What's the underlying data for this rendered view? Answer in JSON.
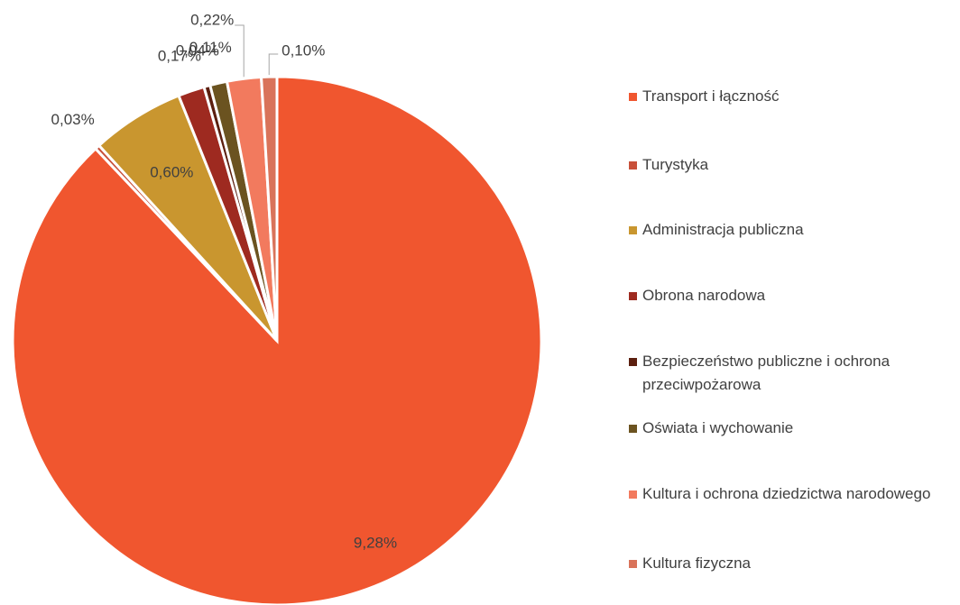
{
  "chart_data": {
    "type": "pie",
    "categories": [
      "Transport i łączność",
      "Turystyka",
      "Administracja publiczna",
      "Obrona narodowa",
      "Bezpieczeństwo publiczne i ochrona przeciwpożarowa",
      "Oświata i wychowanie",
      "Kultura i ochrona dziedzictwa narodowego",
      "Kultura fizyczna"
    ],
    "values": [
      9.28,
      0.03,
      0.6,
      0.17,
      0.04,
      0.11,
      0.22,
      0.1
    ],
    "value_labels": [
      "9,28%",
      "0,03%",
      "0,60%",
      "0,17%",
      "0,04%",
      "0,11%",
      "0,22%",
      "0,10%"
    ],
    "colors": [
      "#f0562f",
      "#c8503a",
      "#c9962f",
      "#9e2a20",
      "#5c1f0f",
      "#6b5320",
      "#f27a5e",
      "#d9735a"
    ],
    "legend": "right"
  }
}
